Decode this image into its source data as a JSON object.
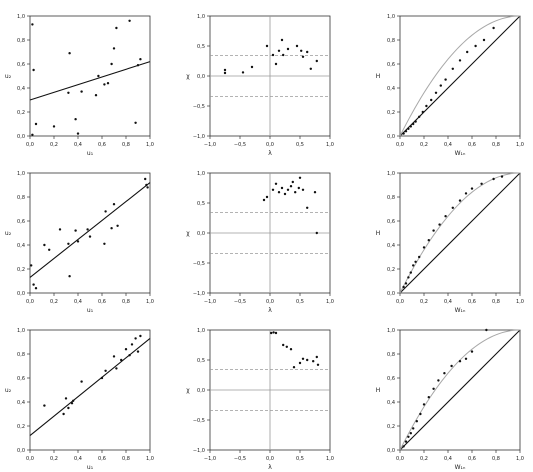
{
  "colors": {
    "ink": "#111111",
    "axis": "#333333",
    "ref_line": "#9a9a9a",
    "dash": "#9a9a9a",
    "curve": "#a8a8a8",
    "point": "#111111"
  },
  "chart_data": [
    {
      "type": "scatter",
      "variant": "scatter_fit",
      "xlabel": "u₁",
      "ylabel": "u₂",
      "xlim": [
        0,
        1
      ],
      "ylim": [
        0,
        1
      ],
      "xticks": [
        "0,0",
        "0,2",
        "0,4",
        "0,6",
        "0,8",
        "1,0"
      ],
      "yticks": [
        "0,0",
        "0,2",
        "0,4",
        "0,6",
        "0,8",
        "1,0"
      ],
      "points": [
        [
          0.02,
          0.93
        ],
        [
          0.03,
          0.55
        ],
        [
          0.05,
          0.1
        ],
        [
          0.02,
          0.01
        ],
        [
          0.2,
          0.08
        ],
        [
          0.33,
          0.69
        ],
        [
          0.32,
          0.36
        ],
        [
          0.38,
          0.14
        ],
        [
          0.4,
          0.02
        ],
        [
          0.43,
          0.37
        ],
        [
          0.55,
          0.34
        ],
        [
          0.57,
          0.5
        ],
        [
          0.62,
          0.43
        ],
        [
          0.65,
          0.44
        ],
        [
          0.68,
          0.6
        ],
        [
          0.7,
          0.73
        ],
        [
          0.72,
          0.9
        ],
        [
          0.83,
          0.96
        ],
        [
          0.88,
          0.11
        ],
        [
          0.9,
          0.59
        ],
        [
          0.92,
          0.64
        ]
      ],
      "fit": [
        [
          0,
          0.3
        ],
        [
          1,
          0.62
        ]
      ]
    },
    {
      "type": "scatter",
      "variant": "chi_plot",
      "xlabel": "λ",
      "ylabel": "χ",
      "xlim": [
        -1,
        1
      ],
      "ylim": [
        -1,
        1
      ],
      "xticks": [
        "−1,0",
        "−0,5",
        "0,0",
        "0,5",
        "1,0"
      ],
      "yticks": [
        "−1,0",
        "−0,5",
        "0,0",
        "0,5",
        "1,0"
      ],
      "bands": [
        0.34,
        -0.34
      ],
      "points": [
        [
          -0.75,
          0.1
        ],
        [
          -0.75,
          0.05
        ],
        [
          -0.45,
          0.06
        ],
        [
          -0.3,
          0.15
        ],
        [
          -0.05,
          0.5
        ],
        [
          0.05,
          0.35
        ],
        [
          0.1,
          0.2
        ],
        [
          0.15,
          0.42
        ],
        [
          0.2,
          0.6
        ],
        [
          0.22,
          0.35
        ],
        [
          0.3,
          0.45
        ],
        [
          0.45,
          0.5
        ],
        [
          0.52,
          0.42
        ],
        [
          0.55,
          0.32
        ],
        [
          0.62,
          0.4
        ],
        [
          0.68,
          0.12
        ],
        [
          0.78,
          0.25
        ]
      ]
    },
    {
      "type": "scatter",
      "variant": "k_plot",
      "xlabel": "W₁ₙ",
      "ylabel": "H",
      "xlim": [
        0,
        1
      ],
      "ylim": [
        0,
        1
      ],
      "xticks": [
        "0,0",
        "0,2",
        "0,4",
        "0,6",
        "0,8",
        "1,0"
      ],
      "yticks": [
        "0,0",
        "0,2",
        "0,4",
        "0,6",
        "0,8",
        "1,0"
      ],
      "points": [
        [
          0.03,
          0.02
        ],
        [
          0.05,
          0.04
        ],
        [
          0.07,
          0.06
        ],
        [
          0.09,
          0.08
        ],
        [
          0.11,
          0.1
        ],
        [
          0.13,
          0.12
        ],
        [
          0.16,
          0.16
        ],
        [
          0.19,
          0.2
        ],
        [
          0.22,
          0.25
        ],
        [
          0.26,
          0.3
        ],
        [
          0.3,
          0.36
        ],
        [
          0.34,
          0.42
        ],
        [
          0.38,
          0.47
        ],
        [
          0.44,
          0.56
        ],
        [
          0.5,
          0.63
        ],
        [
          0.56,
          0.7
        ],
        [
          0.63,
          0.75
        ],
        [
          0.7,
          0.8
        ],
        [
          0.78,
          0.9
        ]
      ]
    },
    {
      "type": "scatter",
      "variant": "scatter_fit",
      "xlabel": "u₁",
      "ylabel": "u₂",
      "xlim": [
        0,
        1
      ],
      "ylim": [
        0,
        1
      ],
      "xticks": [
        "0,0",
        "0,2",
        "0,4",
        "0,6",
        "0,8",
        "1,0"
      ],
      "yticks": [
        "0,0",
        "0,2",
        "0,4",
        "0,6",
        "0,8",
        "1,0"
      ],
      "points": [
        [
          0.01,
          0.23
        ],
        [
          0.03,
          0.07
        ],
        [
          0.05,
          0.04
        ],
        [
          0.12,
          0.4
        ],
        [
          0.16,
          0.36
        ],
        [
          0.25,
          0.53
        ],
        [
          0.32,
          0.41
        ],
        [
          0.33,
          0.14
        ],
        [
          0.38,
          0.52
        ],
        [
          0.4,
          0.43
        ],
        [
          0.48,
          0.53
        ],
        [
          0.5,
          0.47
        ],
        [
          0.62,
          0.41
        ],
        [
          0.63,
          0.68
        ],
        [
          0.68,
          0.54
        ],
        [
          0.7,
          0.74
        ],
        [
          0.73,
          0.56
        ],
        [
          0.96,
          0.95
        ],
        [
          0.97,
          0.9
        ],
        [
          0.98,
          0.88
        ]
      ],
      "fit": [
        [
          0,
          0.13
        ],
        [
          1,
          0.92
        ]
      ]
    },
    {
      "type": "scatter",
      "variant": "chi_plot",
      "xlabel": "λ",
      "ylabel": "χ",
      "xlim": [
        -1,
        1
      ],
      "ylim": [
        -1,
        1
      ],
      "xticks": [
        "−1,0",
        "−0,5",
        "0,0",
        "0,5",
        "1,0"
      ],
      "yticks": [
        "−1,0",
        "−0,5",
        "0,0",
        "0,5",
        "1,0"
      ],
      "bands": [
        0.34,
        -0.34
      ],
      "points": [
        [
          -0.1,
          0.55
        ],
        [
          -0.05,
          0.6
        ],
        [
          0.05,
          0.72
        ],
        [
          0.1,
          0.82
        ],
        [
          0.15,
          0.68
        ],
        [
          0.2,
          0.75
        ],
        [
          0.25,
          0.65
        ],
        [
          0.3,
          0.72
        ],
        [
          0.35,
          0.78
        ],
        [
          0.38,
          0.85
        ],
        [
          0.42,
          0.68
        ],
        [
          0.48,
          0.75
        ],
        [
          0.5,
          0.92
        ],
        [
          0.55,
          0.72
        ],
        [
          0.62,
          0.42
        ],
        [
          0.75,
          0.68
        ],
        [
          0.78,
          0.0
        ]
      ]
    },
    {
      "type": "scatter",
      "variant": "k_plot",
      "xlabel": "W₁ₙ",
      "ylabel": "H",
      "xlim": [
        0,
        1
      ],
      "ylim": [
        0,
        1
      ],
      "xticks": [
        "0,0",
        "0,2",
        "0,4",
        "0,6",
        "0,8",
        "1,0"
      ],
      "yticks": [
        "0,0",
        "0,2",
        "0,4",
        "0,6",
        "0,8",
        "1,0"
      ],
      "points": [
        [
          0.03,
          0.05
        ],
        [
          0.05,
          0.08
        ],
        [
          0.07,
          0.13
        ],
        [
          0.09,
          0.17
        ],
        [
          0.11,
          0.23
        ],
        [
          0.13,
          0.26
        ],
        [
          0.16,
          0.3
        ],
        [
          0.2,
          0.38
        ],
        [
          0.24,
          0.44
        ],
        [
          0.28,
          0.52
        ],
        [
          0.33,
          0.57
        ],
        [
          0.38,
          0.64
        ],
        [
          0.44,
          0.71
        ],
        [
          0.5,
          0.77
        ],
        [
          0.55,
          0.83
        ],
        [
          0.6,
          0.87
        ],
        [
          0.68,
          0.91
        ],
        [
          0.78,
          0.95
        ],
        [
          0.85,
          0.97
        ]
      ]
    },
    {
      "type": "scatter",
      "variant": "scatter_fit",
      "xlabel": "u₁",
      "ylabel": "u₂",
      "xlim": [
        0,
        1
      ],
      "ylim": [
        0,
        1
      ],
      "xticks": [
        "0,0",
        "0,2",
        "0,4",
        "0,6",
        "0,8",
        "1,0"
      ],
      "yticks": [
        "0,0",
        "0,2",
        "0,4",
        "0,6",
        "0,8",
        "1,0"
      ],
      "points": [
        [
          0.12,
          0.37
        ],
        [
          0.28,
          0.3
        ],
        [
          0.3,
          0.43
        ],
        [
          0.32,
          0.35
        ],
        [
          0.35,
          0.39
        ],
        [
          0.36,
          0.41
        ],
        [
          0.43,
          0.57
        ],
        [
          0.6,
          0.6
        ],
        [
          0.63,
          0.66
        ],
        [
          0.7,
          0.78
        ],
        [
          0.72,
          0.68
        ],
        [
          0.76,
          0.75
        ],
        [
          0.8,
          0.84
        ],
        [
          0.83,
          0.79
        ],
        [
          0.85,
          0.88
        ],
        [
          0.88,
          0.93
        ],
        [
          0.9,
          0.82
        ],
        [
          0.92,
          0.95
        ]
      ],
      "fit": [
        [
          0,
          0.12
        ],
        [
          1,
          0.93
        ]
      ]
    },
    {
      "type": "scatter",
      "variant": "chi_plot",
      "xlabel": "λ",
      "ylabel": "χ",
      "xlim": [
        -1,
        1
      ],
      "ylim": [
        -1,
        1
      ],
      "xticks": [
        "−1,0",
        "−0,5",
        "0,0",
        "0,5",
        "1,0"
      ],
      "yticks": [
        "−1,0",
        "−0,5",
        "0,0",
        "0,5",
        "1,0"
      ],
      "bands": [
        0.34,
        -0.34
      ],
      "points": [
        [
          0.02,
          0.95
        ],
        [
          0.06,
          0.96
        ],
        [
          0.1,
          0.95
        ],
        [
          0.22,
          0.75
        ],
        [
          0.28,
          0.72
        ],
        [
          0.35,
          0.68
        ],
        [
          0.4,
          0.38
        ],
        [
          0.5,
          0.45
        ],
        [
          0.55,
          0.52
        ],
        [
          0.62,
          0.5
        ],
        [
          0.72,
          0.48
        ],
        [
          0.78,
          0.55
        ],
        [
          0.8,
          0.42
        ]
      ]
    },
    {
      "type": "scatter",
      "variant": "k_plot",
      "xlabel": "W₁ₙ",
      "ylabel": "H",
      "xlim": [
        0,
        1
      ],
      "ylim": [
        0,
        1
      ],
      "xticks": [
        "0,0",
        "0,2",
        "0,4",
        "0,6",
        "0,8",
        "1,0"
      ],
      "yticks": [
        "0,0",
        "0,2",
        "0,4",
        "0,6",
        "0,8",
        "1,0"
      ],
      "points": [
        [
          0.03,
          0.03
        ],
        [
          0.05,
          0.07
        ],
        [
          0.07,
          0.11
        ],
        [
          0.09,
          0.14
        ],
        [
          0.11,
          0.18
        ],
        [
          0.14,
          0.24
        ],
        [
          0.17,
          0.3
        ],
        [
          0.2,
          0.38
        ],
        [
          0.24,
          0.44
        ],
        [
          0.28,
          0.51
        ],
        [
          0.32,
          0.58
        ],
        [
          0.37,
          0.64
        ],
        [
          0.43,
          0.7
        ],
        [
          0.5,
          0.74
        ],
        [
          0.55,
          0.76
        ],
        [
          0.6,
          0.82
        ],
        [
          0.72,
          1.0
        ]
      ]
    }
  ]
}
